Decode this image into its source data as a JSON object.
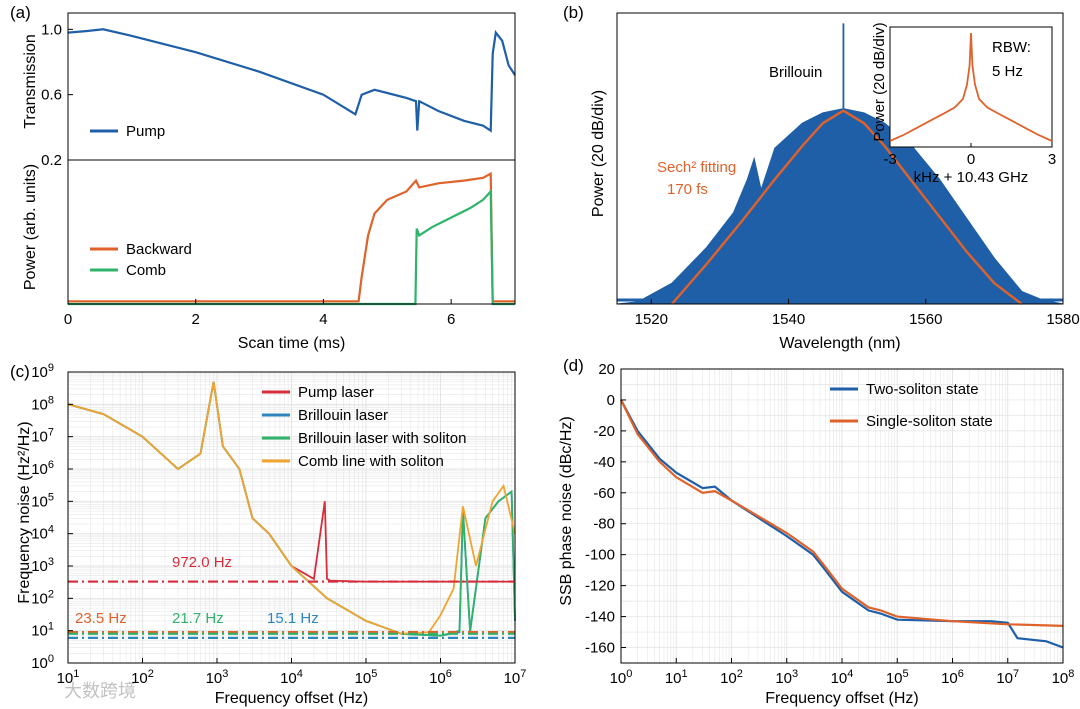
{
  "colors": {
    "blue": "#1f5fa8",
    "orange": "#e0622b",
    "green": "#2fb36a",
    "red": "#d62d3c",
    "gold": "#f1a430",
    "teal": "#2e86c1",
    "grid": "#e2e2e2"
  },
  "watermark": "大数跨境",
  "chart_data": [
    {
      "id": "a-top",
      "panel_label": "(a)",
      "type": "line",
      "ylabel": "Transmission",
      "xlim": [
        0,
        7
      ],
      "ylim": [
        0.2,
        1.1
      ],
      "yticks": [
        {
          "v": 0.2,
          "t": "0.2"
        },
        {
          "v": 0.6,
          "t": "0.6"
        },
        {
          "v": 1.0,
          "t": "1.0"
        }
      ],
      "series": [
        {
          "name": "Pump",
          "color": "blue",
          "x": [
            0,
            0.3,
            0.55,
            1.0,
            2.0,
            3.0,
            4.0,
            4.5,
            4.6,
            4.8,
            5.0,
            5.3,
            5.45,
            5.47,
            5.5,
            5.8,
            6.2,
            6.5,
            6.62,
            6.65,
            6.7,
            6.8,
            6.9,
            7.0
          ],
          "y": [
            0.98,
            0.99,
            1.0,
            0.96,
            0.86,
            0.74,
            0.6,
            0.48,
            0.6,
            0.63,
            0.61,
            0.58,
            0.56,
            0.38,
            0.56,
            0.5,
            0.44,
            0.41,
            0.38,
            0.85,
            0.98,
            0.93,
            0.78,
            0.72
          ]
        }
      ]
    },
    {
      "id": "a-bottom",
      "type": "line",
      "ylabel": "Power (arb. units)",
      "xlabel": "Scan time (ms)",
      "xlim": [
        0,
        7
      ],
      "ylim": [
        0,
        1.05
      ],
      "xticks": [
        {
          "v": 0,
          "t": "0"
        },
        {
          "v": 2,
          "t": "2"
        },
        {
          "v": 4,
          "t": "4"
        },
        {
          "v": 6,
          "t": "6"
        }
      ],
      "series": [
        {
          "name": "Backward",
          "color": "orange",
          "x": [
            0,
            4.55,
            4.6,
            4.7,
            4.8,
            5.0,
            5.3,
            5.45,
            5.5,
            5.8,
            6.2,
            6.5,
            6.62,
            6.65,
            7.0
          ],
          "y": [
            0.02,
            0.02,
            0.2,
            0.5,
            0.66,
            0.76,
            0.82,
            0.9,
            0.85,
            0.88,
            0.9,
            0.92,
            0.95,
            0.02,
            0.02
          ]
        },
        {
          "name": "Comb",
          "color": "green",
          "x": [
            0,
            5.44,
            5.46,
            5.5,
            5.7,
            6.0,
            6.3,
            6.5,
            6.62,
            6.65,
            7.0
          ],
          "y": [
            0.0,
            0.0,
            0.55,
            0.5,
            0.56,
            0.63,
            0.7,
            0.76,
            0.82,
            0.0,
            0.0
          ]
        }
      ]
    },
    {
      "id": "b",
      "panel_label": "(b)",
      "type": "area",
      "xlabel": "Wavelength (nm)",
      "ylabel": "Power (20 dB/div)",
      "xlim": [
        1515,
        1580
      ],
      "xticks": [
        {
          "v": 1520,
          "t": "1520"
        },
        {
          "v": 1540,
          "t": "1540"
        },
        {
          "v": 1560,
          "t": "1560"
        },
        {
          "v": 1580,
          "t": "1580"
        }
      ],
      "spectrum_envelope": {
        "x": [
          1515,
          1518,
          1523,
          1528,
          1532,
          1534,
          1535,
          1536,
          1538,
          1542,
          1545,
          1548,
          1551,
          1554,
          1558,
          1562,
          1566,
          1570,
          1574,
          1577,
          1580
        ],
        "upper": [
          0.0,
          0.01,
          0.1,
          0.27,
          0.44,
          0.6,
          0.7,
          0.55,
          0.75,
          0.87,
          0.92,
          0.94,
          0.92,
          0.87,
          0.76,
          0.6,
          0.41,
          0.22,
          0.06,
          0.02,
          0.0
        ],
        "lower": [
          0.0,
          0.0,
          0.06,
          0.16,
          0.27,
          0.36,
          0.42,
          0.3,
          0.44,
          0.52,
          0.56,
          0.57,
          0.55,
          0.51,
          0.44,
          0.34,
          0.22,
          0.11,
          0.02,
          0.0,
          0.0
        ]
      },
      "brillouin_line": {
        "x": 1548,
        "peak": 1.35
      },
      "fit": {
        "name": "Sech² fitting",
        "duration": "170 fs",
        "color": "orange",
        "x": [
          1523,
          1528,
          1533,
          1538,
          1542,
          1545,
          1548,
          1551,
          1554,
          1558,
          1562,
          1566,
          1570,
          1574
        ],
        "y": [
          0.0,
          0.19,
          0.39,
          0.6,
          0.76,
          0.87,
          0.93,
          0.87,
          0.76,
          0.59,
          0.42,
          0.25,
          0.1,
          0.0
        ]
      },
      "annotations": {
        "brillouin": "Brillouin",
        "fit_label": "Sech² fitting",
        "fit_duration": "170 fs"
      },
      "inset": {
        "type": "line",
        "ylabel": "Power (20 dB/div)",
        "xlabel": "kHz + 10.43 GHz",
        "xlim": [
          -3,
          3
        ],
        "xticks": [
          {
            "v": -3,
            "t": "-3"
          },
          {
            "v": 0,
            "t": "0"
          },
          {
            "v": 3,
            "t": "3"
          }
        ],
        "rbw_line1": "RBW:",
        "rbw_line2": "5 Hz",
        "series": [
          {
            "color": "orange",
            "x": [
              -3,
              -2.5,
              -2,
              -1.5,
              -1,
              -0.6,
              -0.3,
              -0.15,
              -0.05,
              0,
              0.05,
              0.15,
              0.3,
              0.6,
              1,
              1.5,
              2,
              2.5,
              3
            ],
            "y": [
              0.05,
              0.1,
              0.16,
              0.22,
              0.28,
              0.33,
              0.4,
              0.52,
              0.68,
              0.95,
              0.68,
              0.52,
              0.4,
              0.33,
              0.28,
              0.22,
              0.16,
              0.1,
              0.05
            ]
          }
        ]
      }
    },
    {
      "id": "c",
      "panel_label": "(c)",
      "type": "line",
      "xscale": "log",
      "yscale": "log",
      "xlabel": "Frequency offset (Hz)",
      "ylabel": "Frequency noise (Hz²/Hz)",
      "xlim": [
        10,
        10000000
      ],
      "ylim": [
        1,
        1000000000
      ],
      "xticks": [
        {
          "v": 10,
          "b": "10",
          "e": "1"
        },
        {
          "v": 100,
          "b": "10",
          "e": "2"
        },
        {
          "v": 1000,
          "b": "10",
          "e": "3"
        },
        {
          "v": 10000,
          "b": "10",
          "e": "4"
        },
        {
          "v": 100000,
          "b": "10",
          "e": "5"
        },
        {
          "v": 1000000,
          "b": "10",
          "e": "6"
        },
        {
          "v": 10000000,
          "b": "10",
          "e": "7"
        }
      ],
      "yticks": [
        {
          "v": 1,
          "b": "10",
          "e": "0"
        },
        {
          "v": 10,
          "b": "10",
          "e": "1"
        },
        {
          "v": 100,
          "b": "10",
          "e": "2"
        },
        {
          "v": 1000,
          "b": "10",
          "e": "3"
        },
        {
          "v": 10000,
          "b": "10",
          "e": "4"
        },
        {
          "v": 100000,
          "b": "10",
          "e": "5"
        },
        {
          "v": 1000000,
          "b": "10",
          "e": "6"
        },
        {
          "v": 10000000,
          "b": "10",
          "e": "7"
        },
        {
          "v": 100000000,
          "b": "10",
          "e": "8"
        },
        {
          "v": 1000000000,
          "b": "10",
          "e": "9"
        }
      ],
      "series": [
        {
          "name": "Pump laser",
          "color": "red",
          "x": [
            10,
            30,
            100,
            300,
            600,
            900,
            1200,
            2000,
            3000,
            5000,
            10000,
            20000,
            28000,
            30000,
            33000,
            100000,
            1000000,
            10000000
          ],
          "y": [
            100000000,
            50000000,
            10000000,
            1000000,
            3000000,
            500000000,
            5000000,
            1000000,
            30000,
            10000,
            1000,
            400,
            100000,
            400,
            350,
            330,
            330,
            330
          ]
        },
        {
          "name": "Brillouin laser",
          "color": "teal",
          "x": [
            10,
            30,
            100,
            300,
            600,
            900,
            1200,
            2000,
            3000,
            5000,
            10000,
            30000,
            100000,
            300000,
            1000000,
            1800000,
            2000000,
            2500000,
            4000000,
            6000000,
            9000000,
            10000000
          ],
          "y": [
            100000000,
            50000000,
            10000000,
            1000000,
            3000000,
            500000000,
            5000000,
            1000000,
            30000,
            10000,
            1000,
            100,
            20,
            8,
            7,
            9,
            50000,
            9,
            30000,
            100000,
            200000,
            20
          ]
        },
        {
          "name": "Brillouin laser with soliton",
          "color": "green",
          "x": [
            10,
            30,
            100,
            300,
            600,
            900,
            1200,
            2000,
            3000,
            5000,
            10000,
            30000,
            100000,
            300000,
            1000000,
            1800000,
            2000000,
            2500000,
            4000000,
            6000000,
            9000000,
            10000000
          ],
          "y": [
            100000000,
            50000000,
            10000000,
            1000000,
            3000000,
            500000000,
            5000000,
            1000000,
            30000,
            10000,
            1000,
            100,
            20,
            8,
            7,
            10,
            60000,
            10,
            30000,
            100000,
            200000,
            20
          ]
        },
        {
          "name": "Comb line with soliton",
          "color": "gold",
          "x": [
            10,
            30,
            100,
            300,
            600,
            900,
            1200,
            2000,
            3000,
            5000,
            10000,
            30000,
            100000,
            300000,
            700000,
            1000000,
            1500000,
            2000000,
            3000000,
            5000000,
            7000000,
            10000000
          ],
          "y": [
            100000000,
            50000000,
            10000000,
            1000000,
            3000000,
            500000000,
            5000000,
            1000000,
            30000,
            10000,
            1000,
            100,
            20,
            8,
            9,
            30,
            200,
            70000,
            1000,
            100000,
            300000,
            10000
          ]
        }
      ],
      "reference_lines": [
        {
          "label": "972.0 Hz",
          "y": 330,
          "color": "red"
        },
        {
          "label": "23.5 Hz",
          "y": 9,
          "color": "orange"
        },
        {
          "label": "21.7 Hz",
          "y": 8,
          "color": "green"
        },
        {
          "label": "15.1 Hz",
          "y": 6,
          "color": "teal"
        }
      ]
    },
    {
      "id": "d",
      "panel_label": "(d)",
      "type": "line",
      "xscale": "log",
      "xlabel": "Frequency offset (Hz)",
      "ylabel": "SSB phase noise (dBc/Hz)",
      "xlim": [
        1,
        100000000
      ],
      "ylim": [
        -170,
        20
      ],
      "xticks": [
        {
          "v": 1,
          "b": "10",
          "e": "0"
        },
        {
          "v": 10,
          "b": "10",
          "e": "1"
        },
        {
          "v": 100,
          "b": "10",
          "e": "2"
        },
        {
          "v": 1000,
          "b": "10",
          "e": "3"
        },
        {
          "v": 10000,
          "b": "10",
          "e": "4"
        },
        {
          "v": 100000,
          "b": "10",
          "e": "5"
        },
        {
          "v": 1000000,
          "b": "10",
          "e": "6"
        },
        {
          "v": 10000000,
          "b": "10",
          "e": "7"
        },
        {
          "v": 100000000,
          "b": "10",
          "e": "8"
        }
      ],
      "yticks": [
        {
          "v": 20,
          "t": "20"
        },
        {
          "v": 0,
          "t": "0"
        },
        {
          "v": -20,
          "t": "-20"
        },
        {
          "v": -40,
          "t": "-40"
        },
        {
          "v": -60,
          "t": "-60"
        },
        {
          "v": -80,
          "t": "-80"
        },
        {
          "v": -100,
          "t": "-100"
        },
        {
          "v": -120,
          "t": "-120"
        },
        {
          "v": -140,
          "t": "-140"
        },
        {
          "v": -160,
          "t": "-160"
        }
      ],
      "series": [
        {
          "name": "Two-soliton state",
          "color": "blue",
          "x": [
            1,
            2,
            5,
            10,
            30,
            50,
            100,
            300,
            1000,
            3000,
            5000,
            10000,
            30000,
            50000,
            100000,
            1000000,
            5000000,
            10000000,
            15000000,
            50000000,
            100000000
          ],
          "y": [
            0,
            -20,
            -38,
            -47,
            -57,
            -56,
            -65,
            -76,
            -88,
            -100,
            -110,
            -124,
            -136,
            -138,
            -142,
            -143,
            -143,
            -144,
            -154,
            -156,
            -160
          ]
        },
        {
          "name": "Single-soliton state",
          "color": "orange",
          "x": [
            1,
            2,
            5,
            10,
            30,
            50,
            100,
            300,
            1000,
            3000,
            5000,
            10000,
            30000,
            50000,
            100000,
            1000000,
            10000000,
            100000000
          ],
          "y": [
            0,
            -22,
            -40,
            -50,
            -60,
            -59,
            -65,
            -75,
            -86,
            -98,
            -108,
            -122,
            -134,
            -136,
            -140,
            -143,
            -145,
            -146
          ]
        }
      ]
    }
  ]
}
